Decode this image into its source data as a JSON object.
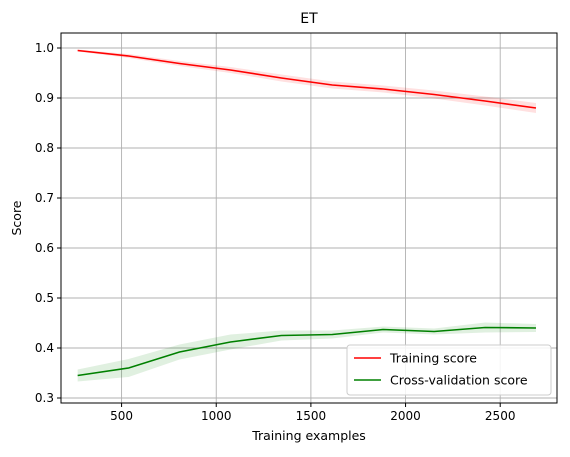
{
  "chart_data": {
    "type": "line",
    "title": "ET",
    "xlabel": "Training examples",
    "ylabel": "Score",
    "xlim": [
      180,
      2800
    ],
    "ylim": [
      0.29,
      1.03
    ],
    "xticks": [
      500,
      1000,
      1500,
      2000,
      2500
    ],
    "yticks": [
      0.3,
      0.4,
      0.5,
      0.6,
      0.7,
      0.8,
      0.9,
      1.0
    ],
    "ytick_labels": [
      "0.3",
      "0.4",
      "0.5",
      "0.6",
      "0.7",
      "0.8",
      "0.9",
      "1.0"
    ],
    "grid": true,
    "legend_position": "lower-right",
    "x": [
      268,
      537,
      806,
      1075,
      1344,
      1613,
      1882,
      2151,
      2420,
      2689
    ],
    "series": [
      {
        "name": "Training score",
        "color": "#ff0000",
        "values": [
          0.995,
          0.984,
          0.969,
          0.956,
          0.94,
          0.926,
          0.918,
          0.907,
          0.894,
          0.88
        ],
        "std_band": [
          0.002,
          0.004,
          0.005,
          0.006,
          0.007,
          0.007,
          0.007,
          0.008,
          0.009,
          0.01
        ]
      },
      {
        "name": "Cross-validation score",
        "color": "#008000",
        "values": [
          0.345,
          0.36,
          0.392,
          0.412,
          0.425,
          0.427,
          0.437,
          0.433,
          0.441,
          0.44
        ],
        "std_band": [
          0.012,
          0.018,
          0.015,
          0.015,
          0.01,
          0.008,
          0.006,
          0.006,
          0.01,
          0.008
        ]
      }
    ]
  }
}
